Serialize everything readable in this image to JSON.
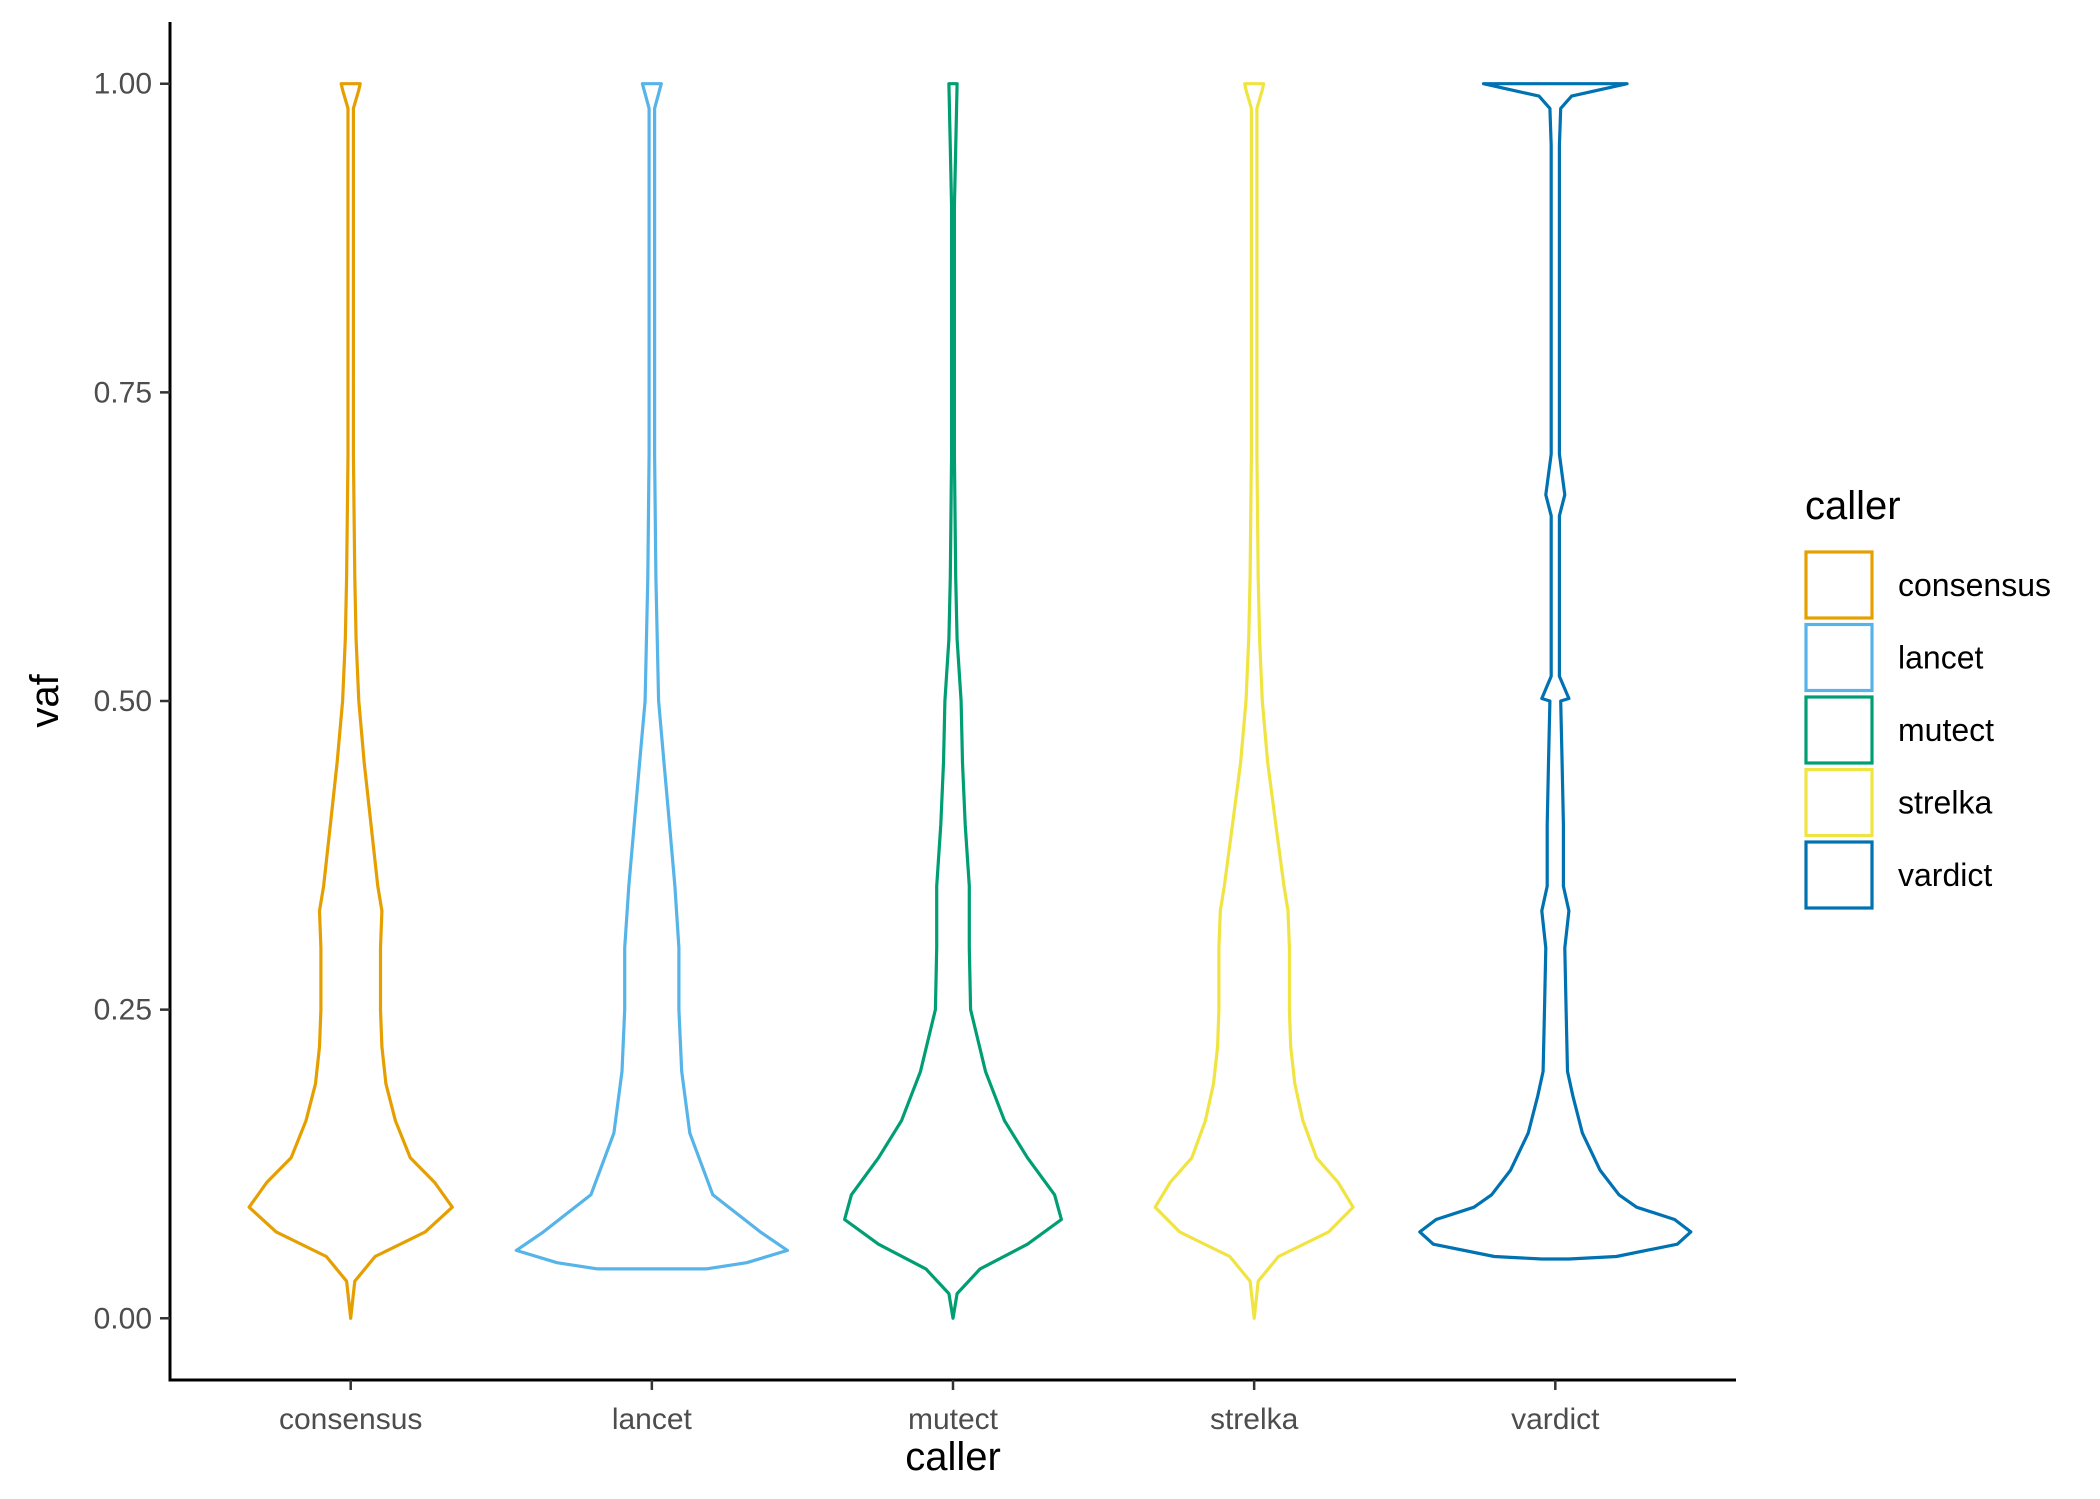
{
  "chart_data": {
    "type": "violin",
    "title": "",
    "xlabel": "caller",
    "ylabel": "vaf",
    "ylim": [
      -0.05,
      1.05
    ],
    "y_ticks": [
      "0.00",
      "0.25",
      "0.50",
      "0.75",
      "1.00"
    ],
    "y_tick_values": [
      0,
      0.25,
      0.5,
      0.75,
      1
    ],
    "categories": [
      "consensus",
      "lancet",
      "mutect",
      "strelka",
      "vardict"
    ],
    "grid": false,
    "legend": {
      "title": "caller",
      "position": "right",
      "entries": [
        "consensus",
        "lancet",
        "mutect",
        "strelka",
        "vardict"
      ]
    },
    "colors": [
      "#E69F00",
      "#56B4E9",
      "#009E73",
      "#F0E442",
      "#0072B2"
    ],
    "series": [
      {
        "name": "consensus",
        "color": "#E69F00",
        "density_profile": [
          [
            0.0,
            0.0
          ],
          [
            0.03,
            0.03
          ],
          [
            0.05,
            0.18
          ],
          [
            0.07,
            0.55
          ],
          [
            0.09,
            0.75
          ],
          [
            0.11,
            0.62
          ],
          [
            0.13,
            0.44
          ],
          [
            0.16,
            0.33
          ],
          [
            0.19,
            0.26
          ],
          [
            0.22,
            0.23
          ],
          [
            0.25,
            0.22
          ],
          [
            0.3,
            0.22
          ],
          [
            0.33,
            0.23
          ],
          [
            0.35,
            0.2
          ],
          [
            0.4,
            0.15
          ],
          [
            0.45,
            0.1
          ],
          [
            0.5,
            0.06
          ],
          [
            0.55,
            0.04
          ],
          [
            0.6,
            0.03
          ],
          [
            0.7,
            0.02
          ],
          [
            0.8,
            0.02
          ],
          [
            0.9,
            0.02
          ],
          [
            0.98,
            0.02
          ],
          [
            0.995,
            0.06
          ],
          [
            1.0,
            0.07
          ]
        ]
      },
      {
        "name": "lancet",
        "color": "#56B4E9",
        "density_profile": [
          [
            0.04,
            0.4
          ],
          [
            0.045,
            0.7
          ],
          [
            0.055,
            1.0
          ],
          [
            0.07,
            0.8
          ],
          [
            0.1,
            0.45
          ],
          [
            0.15,
            0.28
          ],
          [
            0.2,
            0.22
          ],
          [
            0.25,
            0.2
          ],
          [
            0.3,
            0.2
          ],
          [
            0.35,
            0.17
          ],
          [
            0.4,
            0.13
          ],
          [
            0.45,
            0.09
          ],
          [
            0.5,
            0.05
          ],
          [
            0.6,
            0.03
          ],
          [
            0.7,
            0.02
          ],
          [
            0.8,
            0.02
          ],
          [
            0.9,
            0.02
          ],
          [
            0.98,
            0.02
          ],
          [
            1.0,
            0.07
          ]
        ]
      },
      {
        "name": "mutect",
        "color": "#009E73",
        "density_profile": [
          [
            0.0,
            0.0
          ],
          [
            0.02,
            0.03
          ],
          [
            0.04,
            0.2
          ],
          [
            0.06,
            0.55
          ],
          [
            0.08,
            0.8
          ],
          [
            0.1,
            0.75
          ],
          [
            0.13,
            0.55
          ],
          [
            0.16,
            0.38
          ],
          [
            0.2,
            0.24
          ],
          [
            0.25,
            0.13
          ],
          [
            0.3,
            0.12
          ],
          [
            0.35,
            0.12
          ],
          [
            0.4,
            0.09
          ],
          [
            0.45,
            0.07
          ],
          [
            0.5,
            0.06
          ],
          [
            0.55,
            0.03
          ],
          [
            0.6,
            0.02
          ],
          [
            0.7,
            0.01
          ],
          [
            0.8,
            0.01
          ],
          [
            0.9,
            0.01
          ],
          [
            1.0,
            0.03
          ]
        ]
      },
      {
        "name": "strelka",
        "color": "#F0E442",
        "density_profile": [
          [
            0.0,
            0.0
          ],
          [
            0.03,
            0.03
          ],
          [
            0.05,
            0.18
          ],
          [
            0.07,
            0.55
          ],
          [
            0.09,
            0.73
          ],
          [
            0.11,
            0.62
          ],
          [
            0.13,
            0.46
          ],
          [
            0.16,
            0.36
          ],
          [
            0.19,
            0.3
          ],
          [
            0.22,
            0.27
          ],
          [
            0.25,
            0.26
          ],
          [
            0.3,
            0.26
          ],
          [
            0.33,
            0.25
          ],
          [
            0.35,
            0.22
          ],
          [
            0.4,
            0.16
          ],
          [
            0.45,
            0.1
          ],
          [
            0.5,
            0.06
          ],
          [
            0.55,
            0.04
          ],
          [
            0.6,
            0.03
          ],
          [
            0.7,
            0.02
          ],
          [
            0.8,
            0.02
          ],
          [
            0.9,
            0.02
          ],
          [
            0.98,
            0.02
          ],
          [
            0.995,
            0.06
          ],
          [
            1.0,
            0.07
          ]
        ]
      },
      {
        "name": "vardict",
        "color": "#0072B2",
        "density_profile": [
          [
            0.048,
            0.1
          ],
          [
            0.05,
            0.45
          ],
          [
            0.06,
            0.9
          ],
          [
            0.07,
            1.0
          ],
          [
            0.08,
            0.88
          ],
          [
            0.09,
            0.6
          ],
          [
            0.1,
            0.47
          ],
          [
            0.12,
            0.33
          ],
          [
            0.15,
            0.2
          ],
          [
            0.18,
            0.13
          ],
          [
            0.2,
            0.09
          ],
          [
            0.25,
            0.08
          ],
          [
            0.3,
            0.07
          ],
          [
            0.33,
            0.1
          ],
          [
            0.35,
            0.06
          ],
          [
            0.4,
            0.06
          ],
          [
            0.45,
            0.05
          ],
          [
            0.5,
            0.04
          ],
          [
            0.502,
            0.1
          ],
          [
            0.52,
            0.03
          ],
          [
            0.6,
            0.03
          ],
          [
            0.65,
            0.03
          ],
          [
            0.667,
            0.07
          ],
          [
            0.7,
            0.03
          ],
          [
            0.75,
            0.03
          ],
          [
            0.8,
            0.03
          ],
          [
            0.85,
            0.03
          ],
          [
            0.9,
            0.03
          ],
          [
            0.95,
            0.03
          ],
          [
            0.98,
            0.04
          ],
          [
            0.99,
            0.12
          ],
          [
            1.0,
            0.53
          ]
        ]
      }
    ]
  }
}
